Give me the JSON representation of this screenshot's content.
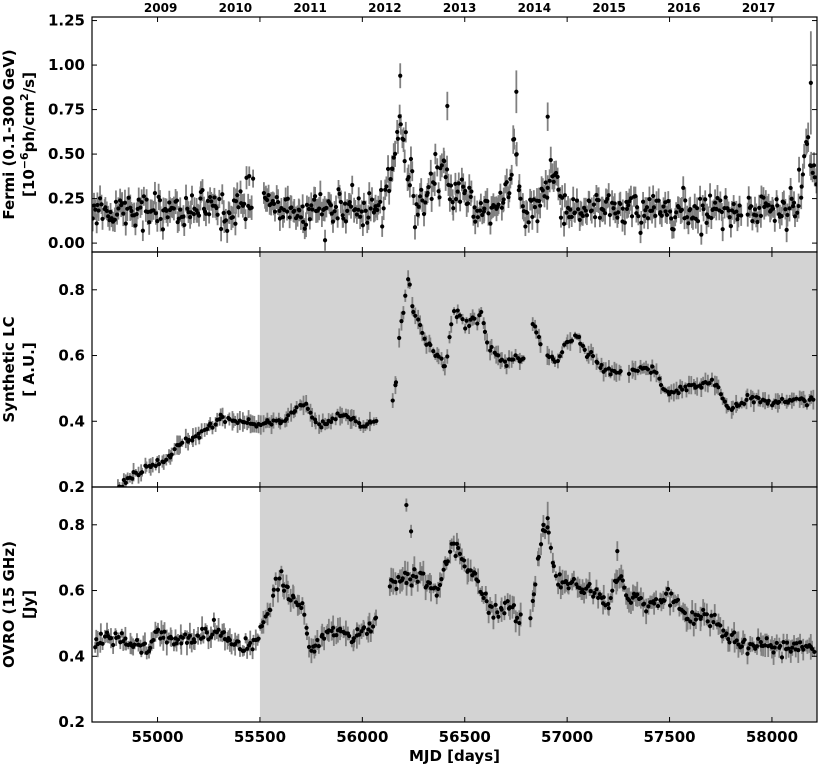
{
  "chart_data": {
    "type": "scatter",
    "xlabel": "MJD [days]",
    "xlim": [
      54680,
      58220
    ],
    "x_ticks": [
      55000,
      55500,
      56000,
      56500,
      57000,
      57500,
      58000
    ],
    "x_tick_labels": [
      "55000",
      "55500",
      "56000",
      "56500",
      "57000",
      "57500",
      "58000"
    ],
    "years": [
      {
        "label": "2009",
        "mjd": 55015
      },
      {
        "label": "2010",
        "mjd": 55380
      },
      {
        "label": "2011",
        "mjd": 55745
      },
      {
        "label": "2012",
        "mjd": 56110
      },
      {
        "label": "2013",
        "mjd": 56475
      },
      {
        "label": "2014",
        "mjd": 56840
      },
      {
        "label": "2015",
        "mjd": 57205
      },
      {
        "label": "2016",
        "mjd": 57570
      },
      {
        "label": "2017",
        "mjd": 57935
      }
    ],
    "shaded_region": {
      "x_start": 55500,
      "x_end": 58220,
      "color": "#d3d3d3"
    },
    "panels": [
      {
        "id": "fermi",
        "ylabel_line1": "Fermi (0.1-300 GeV)",
        "ylabel_line2_prefix": "[10",
        "ylabel_line2_exp1": "−6",
        "ylabel_line2_mid": "ph/cm",
        "ylabel_line2_exp2": "2",
        "ylabel_line2_suffix": "/s]",
        "ylim": [
          -0.05,
          1.27
        ],
        "y_ticks": [
          0.0,
          0.25,
          0.5,
          0.75,
          1.0,
          1.25
        ],
        "y_tick_labels": [
          "0.00",
          "0.25",
          "0.50",
          "0.75",
          "1.00",
          "1.25"
        ],
        "shaded": false,
        "x_range": [
          54680,
          58220
        ],
        "n_points": 560,
        "base": 0.19,
        "noise": 0.05,
        "err": [
          0.05,
          0.08
        ],
        "components": [
          {
            "center": 56180,
            "width": 28,
            "amp": 0.48
          },
          {
            "center": 56235,
            "width": 14,
            "amp": 0.15
          },
          {
            "center": 56350,
            "width": 30,
            "amp": 0.2
          },
          {
            "center": 56405,
            "width": 14,
            "amp": 0.22
          },
          {
            "center": 56480,
            "width": 25,
            "amp": 0.15
          },
          {
            "center": 56740,
            "width": 18,
            "amp": 0.35
          },
          {
            "center": 56925,
            "width": 30,
            "amp": 0.2
          },
          {
            "center": 55480,
            "width": 40,
            "amp": 0.08
          },
          {
            "center": 58180,
            "width": 25,
            "amp": 0.32
          }
        ],
        "outliers": [
          {
            "x": 56185,
            "y": 0.94,
            "err": 0.07
          },
          {
            "x": 56415,
            "y": 0.77,
            "err": 0.08
          },
          {
            "x": 56752,
            "y": 0.85,
            "err": 0.12
          },
          {
            "x": 56905,
            "y": 0.71,
            "err": 0.08
          },
          {
            "x": 58190,
            "y": 0.9,
            "err": 0.29
          }
        ],
        "gaps": [
          [
            55470,
            55510
          ],
          [
            57850,
            57880
          ]
        ]
      },
      {
        "id": "synthetic",
        "ylabel_line1": "Synthetic LC",
        "ylabel_line2": "[ A.U.]",
        "ylim": [
          0.2,
          0.915
        ],
        "y_ticks": [
          0.2,
          0.4,
          0.6,
          0.8
        ],
        "y_tick_labels": [
          "0.2",
          "0.4",
          "0.6",
          "0.8"
        ],
        "shaded": true,
        "x_range": [
          54800,
          58210
        ],
        "n_points": 330,
        "noise": 0.006,
        "err": [
          0.01,
          0.03
        ],
        "knots": [
          [
            54800,
            0.2
          ],
          [
            54900,
            0.24
          ],
          [
            55000,
            0.27
          ],
          [
            55150,
            0.34
          ],
          [
            55250,
            0.38
          ],
          [
            55300,
            0.41
          ],
          [
            55400,
            0.4
          ],
          [
            55500,
            0.39
          ],
          [
            55600,
            0.4
          ],
          [
            55700,
            0.45
          ],
          [
            55800,
            0.39
          ],
          [
            55900,
            0.42
          ],
          [
            56000,
            0.39
          ],
          [
            56060,
            0.4
          ],
          [
            56150,
            0.46
          ],
          [
            56190,
            0.7
          ],
          [
            56225,
            0.82
          ],
          [
            56260,
            0.72
          ],
          [
            56320,
            0.63
          ],
          [
            56380,
            0.6
          ],
          [
            56400,
            0.57
          ],
          [
            56450,
            0.73
          ],
          [
            56500,
            0.7
          ],
          [
            56580,
            0.72
          ],
          [
            56620,
            0.62
          ],
          [
            56700,
            0.58
          ],
          [
            56780,
            0.59
          ],
          [
            56830,
            0.69
          ],
          [
            56900,
            0.6
          ],
          [
            56950,
            0.58
          ],
          [
            57000,
            0.64
          ],
          [
            57050,
            0.65
          ],
          [
            57100,
            0.6
          ],
          [
            57200,
            0.55
          ],
          [
            57300,
            0.55
          ],
          [
            57400,
            0.56
          ],
          [
            57500,
            0.49
          ],
          [
            57600,
            0.5
          ],
          [
            57700,
            0.52
          ],
          [
            57800,
            0.44
          ],
          [
            57900,
            0.47
          ],
          [
            58000,
            0.46
          ],
          [
            58100,
            0.46
          ],
          [
            58200,
            0.47
          ]
        ],
        "gaps": [
          [
            56070,
            56140
          ],
          [
            56800,
            56820
          ],
          [
            56880,
            56895
          ],
          [
            57270,
            57295
          ]
        ]
      },
      {
        "id": "ovro",
        "ylabel_line1": "OVRO (15 GHz)",
        "ylabel_line2": "[Jy]",
        "ylim": [
          0.2,
          0.915
        ],
        "y_ticks": [
          0.2,
          0.4,
          0.6,
          0.8
        ],
        "y_tick_labels": [
          "0.2",
          "0.4",
          "0.6",
          "0.8"
        ],
        "shaded": true,
        "x_range": [
          54690,
          58210
        ],
        "n_points": 430,
        "noise": 0.012,
        "err": [
          0.012,
          0.04
        ],
        "knots": [
          [
            54690,
            0.43
          ],
          [
            54750,
            0.46
          ],
          [
            54850,
            0.44
          ],
          [
            54950,
            0.42
          ],
          [
            55000,
            0.47
          ],
          [
            55100,
            0.45
          ],
          [
            55200,
            0.46
          ],
          [
            55300,
            0.47
          ],
          [
            55400,
            0.43
          ],
          [
            55480,
            0.43
          ],
          [
            55510,
            0.5
          ],
          [
            55600,
            0.63
          ],
          [
            55650,
            0.59
          ],
          [
            55700,
            0.56
          ],
          [
            55750,
            0.42
          ],
          [
            55850,
            0.48
          ],
          [
            55950,
            0.46
          ],
          [
            56050,
            0.5
          ],
          [
            56150,
            0.62
          ],
          [
            56250,
            0.65
          ],
          [
            56350,
            0.6
          ],
          [
            56450,
            0.73
          ],
          [
            56550,
            0.64
          ],
          [
            56650,
            0.53
          ],
          [
            56700,
            0.55
          ],
          [
            56800,
            0.5
          ],
          [
            56900,
            0.8
          ],
          [
            56950,
            0.63
          ],
          [
            57100,
            0.6
          ],
          [
            57200,
            0.56
          ],
          [
            57250,
            0.65
          ],
          [
            57300,
            0.58
          ],
          [
            57400,
            0.56
          ],
          [
            57500,
            0.58
          ],
          [
            57600,
            0.52
          ],
          [
            57700,
            0.52
          ],
          [
            57800,
            0.46
          ],
          [
            57900,
            0.43
          ],
          [
            58000,
            0.43
          ],
          [
            58100,
            0.42
          ],
          [
            58210,
            0.43
          ]
        ],
        "outliers": [
          {
            "x": 56215,
            "y": 0.86,
            "err": 0.02
          },
          {
            "x": 56238,
            "y": 0.78,
            "err": 0.02
          },
          {
            "x": 56905,
            "y": 0.82,
            "err": 0.05
          },
          {
            "x": 57245,
            "y": 0.72,
            "err": 0.03
          }
        ],
        "gaps": [
          [
            56070,
            56130
          ],
          [
            56780,
            56820
          ]
        ]
      }
    ]
  }
}
